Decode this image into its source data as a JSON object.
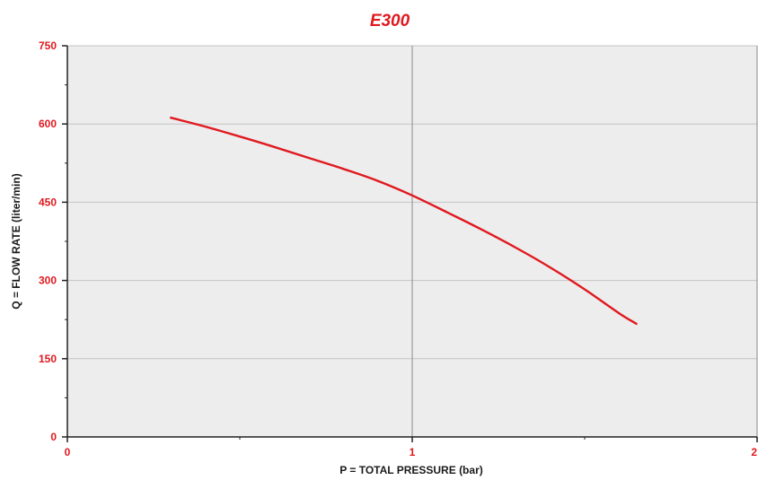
{
  "chart_data": {
    "type": "line",
    "title": "E300",
    "xlabel": "P = TOTAL PRESSURE (bar)",
    "ylabel": "Q = FLOW RATE (liter/min)",
    "xlim": [
      0,
      2
    ],
    "ylim": [
      0,
      750
    ],
    "x_ticks": [
      "0",
      "1",
      "2"
    ],
    "y_ticks": [
      "0",
      "150",
      "300",
      "450",
      "600",
      "750"
    ],
    "x_tick_values": [
      0,
      1,
      2
    ],
    "y_tick_values": [
      0,
      150,
      300,
      450,
      600,
      750
    ],
    "grid": true,
    "legend": "none",
    "series": [
      {
        "x": [
          0.3,
          0.4,
          0.5,
          0.6,
          0.7,
          0.8,
          0.9,
          1.0,
          1.1,
          1.2,
          1.3,
          1.4,
          1.5,
          1.6,
          1.65
        ],
        "y": [
          612,
          595,
          576,
          556,
          535,
          514,
          491,
          463,
          431,
          398,
          363,
          325,
          283,
          237,
          217
        ]
      }
    ],
    "colors": {
      "accent": "#e0191f",
      "plot_bg": "#ededed",
      "grid": "#c4c4c4",
      "axis": "#222222",
      "line": "#e0191f"
    }
  }
}
